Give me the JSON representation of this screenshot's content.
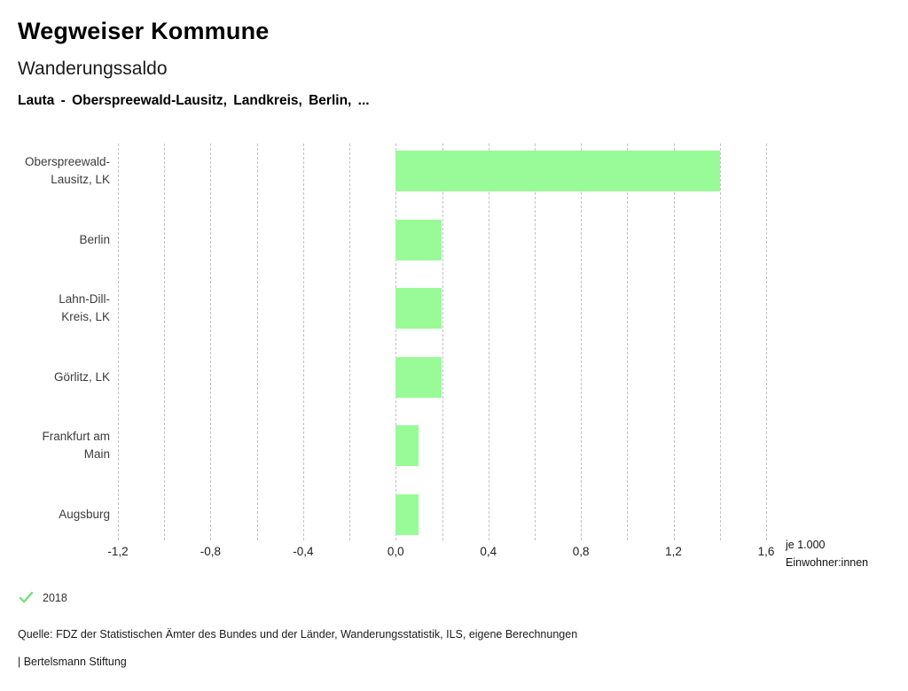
{
  "header": {
    "title": "Wegweiser Kommune",
    "subtitle": "Wanderungssaldo",
    "selection": "Lauta - Oberspreewald-Lausitz, Landkreis, Berlin, ..."
  },
  "chart_data": {
    "type": "bar",
    "orientation": "horizontal",
    "title": "Wanderungssaldo",
    "categories": [
      "Oberspreewald-Lausitz, LK",
      "Berlin",
      "Lahn-Dill-Kreis, LK",
      "Görlitz, LK",
      "Frankfurt am Main",
      "Augsburg"
    ],
    "category_lines": [
      [
        "Oberspreewald-",
        "Lausitz, LK"
      ],
      [
        "Berlin"
      ],
      [
        "Lahn-Dill-",
        "Kreis, LK"
      ],
      [
        "Görlitz, LK"
      ],
      [
        "Frankfurt am",
        "Main"
      ],
      [
        "Augsburg"
      ]
    ],
    "series": [
      {
        "name": "2018",
        "values": [
          1.4,
          0.2,
          0.2,
          0.2,
          0.1,
          0.1
        ]
      }
    ],
    "xlim": [
      -1.2,
      1.6
    ],
    "grid_step": 0.2,
    "grid": true,
    "xticks": [
      -1.2,
      -0.8,
      -0.4,
      0,
      0.4,
      0.8,
      1.2,
      1.6
    ],
    "xtick_labels": [
      "-1,2",
      "-0,8",
      "-0,4",
      "0,0",
      "0,4",
      "0,8",
      "1,2",
      "1,6"
    ],
    "unit_lines": [
      "je 1.000",
      "Einwohner:innen"
    ],
    "bar_color": "#98FB98",
    "legend_position": "bottom"
  },
  "legend": {
    "check_icon": "check",
    "check_color": "#7fdc86",
    "year": "2018"
  },
  "footer": {
    "source": "Quelle: FDZ der Statistischen Ämter des Bundes und der Länder, Wanderungsstatistik, ILS, eigene Berechnungen",
    "attribution": "| Bertelsmann Stiftung"
  }
}
